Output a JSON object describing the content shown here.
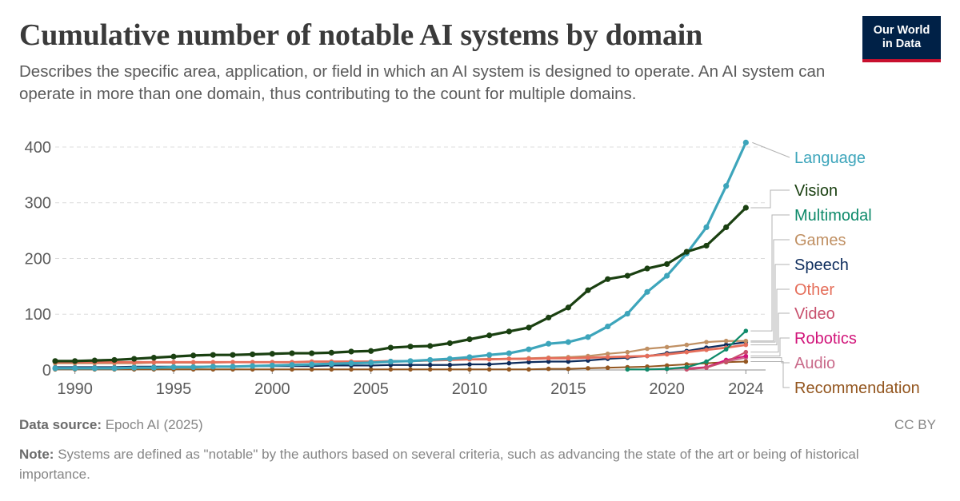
{
  "header": {
    "title": "Cumulative number of notable AI systems by domain",
    "subtitle": "Describes the specific area, application, or field in which an AI system is designed to operate. An AI system can operate in more than one domain, thus contributing to the count for multiple domains."
  },
  "logo": {
    "line1": "Our World",
    "line2": "in Data"
  },
  "footer": {
    "source_label": "Data source:",
    "source_text": "Epoch AI (2025)",
    "license": "CC BY",
    "note_label": "Note:",
    "note_text": "Systems are defined as \"notable\" by the authors based on several criteria, such as advancing the state of the art or being of historical importance."
  },
  "chart_data": {
    "type": "line",
    "x_ticks": [
      1990,
      1995,
      2000,
      2005,
      2010,
      2015,
      2020,
      2024
    ],
    "y_ticks": [
      0,
      100,
      200,
      300,
      400
    ],
    "xlim": [
      1989,
      2025
    ],
    "ylim": [
      0,
      420
    ],
    "grid": "horizontal-dashed",
    "legend": "right",
    "series": [
      {
        "name": "Language",
        "color": "#3da5bb",
        "width": 3.2,
        "x": [
          1989,
          1990,
          1991,
          1992,
          1993,
          1994,
          1995,
          1996,
          1997,
          1998,
          1999,
          2000,
          2001,
          2002,
          2003,
          2004,
          2005,
          2006,
          2007,
          2008,
          2009,
          2010,
          2011,
          2012,
          2013,
          2014,
          2015,
          2016,
          2017,
          2018,
          2019,
          2020,
          2021,
          2022,
          2023,
          2024
        ],
        "y": [
          3,
          3,
          3,
          3,
          4,
          4,
          5,
          5,
          6,
          6,
          7,
          8,
          9,
          10,
          11,
          12,
          13,
          15,
          16,
          18,
          20,
          23,
          27,
          30,
          37,
          47,
          50,
          59,
          78,
          101,
          140,
          169,
          209,
          256,
          330,
          408
        ]
      },
      {
        "name": "Vision",
        "color": "#1a4011",
        "width": 3.2,
        "x": [
          1989,
          1990,
          1991,
          1992,
          1993,
          1994,
          1995,
          1996,
          1997,
          1998,
          1999,
          2000,
          2001,
          2002,
          2003,
          2004,
          2005,
          2006,
          2007,
          2008,
          2009,
          2010,
          2011,
          2012,
          2013,
          2014,
          2015,
          2016,
          2017,
          2018,
          2019,
          2020,
          2021,
          2022,
          2023,
          2024
        ],
        "y": [
          16,
          16,
          17,
          18,
          20,
          22,
          24,
          26,
          27,
          27,
          28,
          29,
          30,
          30,
          31,
          33,
          34,
          40,
          42,
          43,
          48,
          55,
          62,
          69,
          76,
          94,
          112,
          143,
          163,
          169,
          182,
          190,
          212,
          223,
          256,
          291
        ]
      },
      {
        "name": "Multimodal",
        "color": "#0e8a6a",
        "width": 2.2,
        "x": [
          2018,
          2019,
          2020,
          2021,
          2022,
          2023,
          2024
        ],
        "y": [
          1,
          1,
          2,
          5,
          15,
          37,
          70
        ]
      },
      {
        "name": "Games",
        "color": "#c09063",
        "width": 2.2,
        "x": [
          1989,
          1990,
          1991,
          1992,
          1993,
          1994,
          1995,
          1996,
          1997,
          1998,
          1999,
          2000,
          2001,
          2002,
          2003,
          2004,
          2005,
          2006,
          2007,
          2008,
          2009,
          2010,
          2011,
          2012,
          2013,
          2014,
          2015,
          2016,
          2017,
          2018,
          2019,
          2020,
          2021,
          2022,
          2023,
          2024
        ],
        "y": [
          12,
          12,
          12,
          12,
          12,
          13,
          13,
          13,
          13,
          14,
          14,
          14,
          14,
          15,
          15,
          15,
          15,
          16,
          16,
          17,
          18,
          19,
          20,
          20,
          21,
          22,
          23,
          25,
          29,
          32,
          38,
          41,
          45,
          50,
          52,
          52
        ]
      },
      {
        "name": "Speech",
        "color": "#0d2c5c",
        "width": 2.2,
        "x": [
          1989,
          1990,
          1991,
          1992,
          1993,
          1994,
          1995,
          1996,
          1997,
          1998,
          1999,
          2000,
          2001,
          2002,
          2003,
          2004,
          2005,
          2006,
          2007,
          2008,
          2009,
          2010,
          2011,
          2012,
          2013,
          2014,
          2015,
          2016,
          2017,
          2018,
          2019,
          2020,
          2021,
          2022,
          2023,
          2024
        ],
        "y": [
          5,
          5,
          5,
          5,
          6,
          6,
          6,
          6,
          6,
          6,
          7,
          7,
          7,
          7,
          8,
          8,
          8,
          9,
          9,
          9,
          9,
          10,
          10,
          12,
          14,
          15,
          15,
          17,
          20,
          22,
          25,
          30,
          34,
          40,
          45,
          50
        ]
      },
      {
        "name": "Other",
        "color": "#e56e5a",
        "width": 2.8,
        "x": [
          1989,
          1990,
          1991,
          1992,
          1993,
          1994,
          1995,
          1996,
          1997,
          1998,
          1999,
          2000,
          2001,
          2002,
          2003,
          2004,
          2005,
          2006,
          2007,
          2008,
          2009,
          2010,
          2011,
          2012,
          2013,
          2014,
          2015,
          2016,
          2017,
          2018,
          2019,
          2020,
          2021,
          2022,
          2023,
          2024
        ],
        "y": [
          14,
          14,
          14,
          14,
          14,
          14,
          14,
          14,
          14,
          14,
          14,
          14,
          14,
          15,
          15,
          15,
          15,
          16,
          16,
          17,
          18,
          19,
          19,
          20,
          20,
          21,
          21,
          22,
          23,
          24,
          25,
          28,
          32,
          36,
          40,
          45
        ]
      },
      {
        "name": "Video",
        "color": "#c8506d",
        "width": 2.0,
        "x": [
          2021,
          2022,
          2023,
          2024
        ],
        "y": [
          1,
          4,
          15,
          32
        ]
      },
      {
        "name": "Robotics",
        "color": "#d1157a",
        "width": 2.0,
        "x": [
          2021,
          2022,
          2023,
          2024
        ],
        "y": [
          2,
          5,
          18,
          25
        ]
      },
      {
        "name": "Audio",
        "color": "#c96a8a",
        "width": 2.0,
        "x": [
          2019,
          2020,
          2021,
          2022,
          2023,
          2024
        ],
        "y": [
          1,
          2,
          3,
          5,
          15,
          22
        ]
      },
      {
        "name": "Recommendation",
        "color": "#93561f",
        "width": 2.0,
        "x": [
          1989,
          1990,
          1991,
          1992,
          1993,
          1994,
          1995,
          1996,
          1997,
          1998,
          1999,
          2000,
          2001,
          2002,
          2003,
          2004,
          2005,
          2006,
          2007,
          2008,
          2009,
          2010,
          2011,
          2012,
          2013,
          2014,
          2015,
          2016,
          2017,
          2018,
          2019,
          2020,
          2021,
          2022,
          2023,
          2024
        ],
        "y": [
          1,
          1,
          1,
          1,
          1,
          1,
          1,
          1,
          1,
          1,
          1,
          1,
          1,
          1,
          1,
          1,
          1,
          1,
          1,
          1,
          1,
          1,
          1,
          1,
          1,
          2,
          2,
          3,
          4,
          5,
          6,
          8,
          10,
          12,
          14,
          15
        ]
      }
    ]
  }
}
